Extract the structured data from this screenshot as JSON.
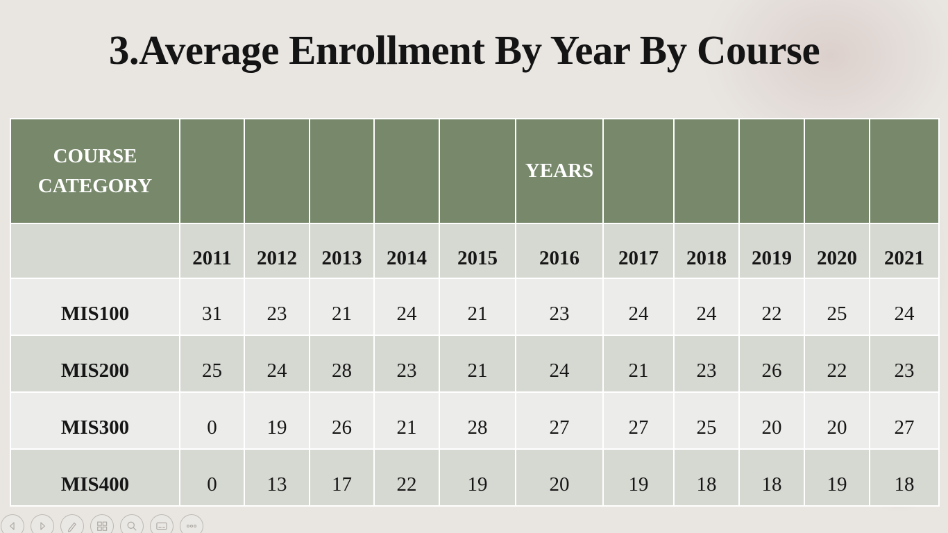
{
  "slide": {
    "title": "3.Average Enrollment By Year By Course"
  },
  "table": {
    "header": {
      "course_category": "COURSE CATEGORY",
      "years_label": "YEARS"
    },
    "years": [
      "2011",
      "2012",
      "2013",
      "2014",
      "2015",
      "2016",
      "2017",
      "2018",
      "2019",
      "2020",
      "2021"
    ],
    "rows": [
      {
        "course": "MIS100",
        "values": [
          31,
          23,
          21,
          24,
          21,
          23,
          24,
          24,
          22,
          25,
          24
        ]
      },
      {
        "course": "MIS200",
        "values": [
          25,
          24,
          28,
          23,
          21,
          24,
          21,
          23,
          26,
          22,
          23
        ]
      },
      {
        "course": "MIS300",
        "values": [
          0,
          19,
          26,
          21,
          28,
          27,
          27,
          25,
          20,
          20,
          27
        ]
      },
      {
        "course": "MIS400",
        "values": [
          0,
          13,
          17,
          22,
          19,
          20,
          19,
          18,
          18,
          19,
          18
        ]
      }
    ]
  },
  "nav_controls": {
    "items": [
      {
        "name": "previous-slide",
        "icon": "chevron-left-icon"
      },
      {
        "name": "next-slide",
        "icon": "chevron-right-icon"
      },
      {
        "name": "pen-tools",
        "icon": "pen-icon"
      },
      {
        "name": "see-all-slides",
        "icon": "slides-grid-icon"
      },
      {
        "name": "zoom-slide",
        "icon": "magnifier-icon"
      },
      {
        "name": "captions",
        "icon": "captions-icon"
      },
      {
        "name": "more-options",
        "icon": "ellipsis-icon"
      }
    ]
  },
  "colors": {
    "header_green": "#77886B",
    "row_light": "#ECEDEA",
    "row_dark": "#D6D8D2",
    "slide_background": "#E9E6E2",
    "text_dark": "#161616",
    "header_text": "#FFFFFF"
  }
}
